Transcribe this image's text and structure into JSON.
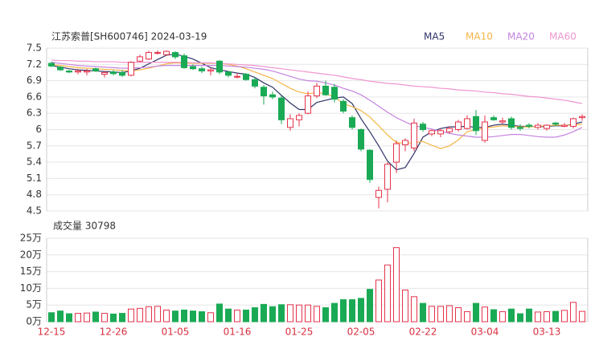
{
  "chart_data": [
    {
      "type": "candlestick",
      "title": "江苏索普[SH600746] 2024-03-19",
      "categories": [
        "12-15",
        null,
        null,
        null,
        null,
        null,
        null,
        "12-26",
        null,
        null,
        null,
        null,
        null,
        null,
        "01-05",
        null,
        null,
        null,
        null,
        null,
        null,
        "01-16",
        null,
        null,
        null,
        null,
        null,
        null,
        "01-25",
        null,
        null,
        null,
        null,
        null,
        null,
        "02-05",
        null,
        null,
        null,
        null,
        null,
        null,
        "02-22",
        null,
        null,
        null,
        null,
        null,
        null,
        "03-04",
        null,
        null,
        null,
        null,
        null,
        null,
        "03-13",
        null,
        null,
        null,
        null
      ],
      "open": [
        7.22,
        7.15,
        7.08,
        7.06,
        7.06,
        7.12,
        7.02,
        7.06,
        7.05,
        7.0,
        7.26,
        7.3,
        7.42,
        7.38,
        7.42,
        7.36,
        7.16,
        7.12,
        7.08,
        7.26,
        7.06,
        6.98,
        7.02,
        6.92,
        6.78,
        6.64,
        6.58,
        6.04,
        6.18,
        6.3,
        6.62,
        6.8,
        6.78,
        6.52,
        6.22,
        6.0,
        5.62,
        4.75,
        4.9,
        5.4,
        5.72,
        5.66,
        6.1,
        5.92,
        5.92,
        5.96,
        6.0,
        6.02,
        6.24,
        5.8,
        6.22,
        6.14,
        6.2,
        6.04,
        6.08,
        6.04,
        6.02,
        6.12,
        6.06,
        6.06,
        6.22
      ],
      "high": [
        7.25,
        7.17,
        7.1,
        7.12,
        7.12,
        7.14,
        7.08,
        7.1,
        7.1,
        7.26,
        7.38,
        7.45,
        7.46,
        7.46,
        7.44,
        7.4,
        7.2,
        7.16,
        7.14,
        7.28,
        7.08,
        7.04,
        7.04,
        6.96,
        6.82,
        6.7,
        6.62,
        6.28,
        6.3,
        6.7,
        6.86,
        6.9,
        6.84,
        6.56,
        6.26,
        6.02,
        5.64,
        4.95,
        5.4,
        5.8,
        5.84,
        6.2,
        6.14,
        6.0,
        6.02,
        6.06,
        6.18,
        6.26,
        6.36,
        6.26,
        6.26,
        6.22,
        6.24,
        6.1,
        6.12,
        6.12,
        6.1,
        6.14,
        6.12,
        6.22,
        6.28
      ],
      "low": [
        7.15,
        7.08,
        7.04,
        7.02,
        7.0,
        7.06,
        6.96,
        7.0,
        6.97,
        6.98,
        7.24,
        7.28,
        7.38,
        7.36,
        7.3,
        7.12,
        7.1,
        7.04,
        7.0,
        7.02,
        6.96,
        6.94,
        6.9,
        6.76,
        6.46,
        6.56,
        6.1,
        5.98,
        6.06,
        6.28,
        6.58,
        6.62,
        6.5,
        6.3,
        6.0,
        5.6,
        5.02,
        4.55,
        4.66,
        5.2,
        5.6,
        5.6,
        5.96,
        5.88,
        5.86,
        5.92,
        5.96,
        6.0,
        5.9,
        5.76,
        6.16,
        6.1,
        6.0,
        5.98,
        6.02,
        6.0,
        5.98,
        6.06,
        6.04,
        6.02,
        6.16
      ],
      "close": [
        7.17,
        7.1,
        7.06,
        7.08,
        7.08,
        7.08,
        7.05,
        7.03,
        7.0,
        7.24,
        7.34,
        7.42,
        7.42,
        7.44,
        7.34,
        7.14,
        7.12,
        7.08,
        7.1,
        7.06,
        7.0,
        6.98,
        6.92,
        6.8,
        6.62,
        6.6,
        6.18,
        6.2,
        6.26,
        6.62,
        6.8,
        6.64,
        6.56,
        6.34,
        6.04,
        5.64,
        5.08,
        4.88,
        5.36,
        5.74,
        5.8,
        6.12,
        6.0,
        5.98,
        5.98,
        6.02,
        6.14,
        6.2,
        5.98,
        6.14,
        6.18,
        6.16,
        6.04,
        6.02,
        6.06,
        6.08,
        6.08,
        6.1,
        6.08,
        6.2,
        6.24
      ],
      "up_color": "#e5334b",
      "down_color": "#1aaa55",
      "ylim": [
        4.5,
        7.5
      ],
      "yticks": [
        4.5,
        4.8,
        5.1,
        5.4,
        5.7,
        6,
        6.3,
        6.6,
        6.9,
        7.2,
        7.5
      ],
      "grid": true,
      "series": [
        {
          "name": "MA5",
          "color": "#2f3468",
          "values": [
            7.18,
            7.15,
            7.12,
            7.1,
            7.09,
            7.08,
            7.07,
            7.06,
            7.05,
            7.08,
            7.13,
            7.21,
            7.29,
            7.37,
            7.39,
            7.35,
            7.3,
            7.22,
            7.14,
            7.1,
            7.07,
            7.04,
            7.02,
            6.96,
            6.86,
            6.78,
            6.63,
            6.49,
            6.37,
            6.37,
            6.5,
            6.54,
            6.58,
            6.6,
            6.48,
            6.2,
            5.96,
            5.7,
            5.42,
            5.26,
            5.3,
            5.56,
            5.86,
            5.96,
            6.02,
            6.05,
            6.05,
            6.06,
            6.04,
            6.04,
            6.08,
            6.1,
            6.08,
            6.06,
            6.06,
            6.05,
            6.06,
            6.07,
            6.07,
            6.1,
            6.14
          ]
        },
        {
          "name": "MA10",
          "color": "#f5b547",
          "values": [
            7.2,
            7.18,
            7.16,
            7.14,
            7.13,
            7.12,
            7.11,
            7.1,
            7.09,
            7.08,
            7.1,
            7.13,
            7.17,
            7.21,
            7.23,
            7.22,
            7.22,
            7.22,
            7.22,
            7.22,
            7.2,
            7.17,
            7.12,
            7.06,
            7.0,
            6.94,
            6.85,
            6.76,
            6.69,
            6.66,
            6.68,
            6.66,
            6.6,
            6.48,
            6.42,
            6.35,
            6.23,
            6.07,
            5.9,
            5.76,
            5.75,
            5.76,
            5.78,
            5.71,
            5.65,
            5.7,
            5.81,
            5.96,
            6.0,
            6.03,
            6.05,
            6.07,
            6.06,
            6.05,
            6.05,
            6.06,
            6.07,
            6.08,
            6.08,
            6.08,
            6.1
          ]
        },
        {
          "name": "MA20",
          "color": "#c583e0",
          "values": [
            7.24,
            7.22,
            7.2,
            7.18,
            7.17,
            7.16,
            7.15,
            7.14,
            7.13,
            7.13,
            7.14,
            7.15,
            7.17,
            7.18,
            7.18,
            7.18,
            7.18,
            7.18,
            7.18,
            7.18,
            7.17,
            7.16,
            7.15,
            7.13,
            7.11,
            7.08,
            7.03,
            6.98,
            6.93,
            6.9,
            6.89,
            6.86,
            6.82,
            6.76,
            6.71,
            6.64,
            6.54,
            6.43,
            6.32,
            6.22,
            6.14,
            6.07,
            6.04,
            6.01,
            5.97,
            5.93,
            5.9,
            5.88,
            5.86,
            5.86,
            5.87,
            5.89,
            5.91,
            5.91,
            5.89,
            5.87,
            5.86,
            5.86,
            5.9,
            5.96,
            6.04
          ]
        },
        {
          "name": "MA60",
          "color": "#ef96cf",
          "values": [
            7.28,
            7.27,
            7.27,
            7.26,
            7.26,
            7.25,
            7.25,
            7.25,
            7.24,
            7.24,
            7.24,
            7.24,
            7.24,
            7.24,
            7.24,
            7.24,
            7.23,
            7.23,
            7.23,
            7.22,
            7.21,
            7.2,
            7.19,
            7.18,
            7.16,
            7.14,
            7.12,
            7.1,
            7.08,
            7.06,
            7.04,
            7.02,
            7.0,
            6.97,
            6.94,
            6.92,
            6.89,
            6.87,
            6.85,
            6.84,
            6.82,
            6.8,
            6.79,
            6.78,
            6.76,
            6.75,
            6.73,
            6.72,
            6.71,
            6.69,
            6.68,
            6.66,
            6.65,
            6.63,
            6.61,
            6.6,
            6.58,
            6.56,
            6.54,
            6.51,
            6.48
          ]
        }
      ]
    },
    {
      "type": "bar",
      "title": "成交量 30798",
      "values": [
        2.7,
        3.2,
        2.4,
        2.5,
        2.6,
        2.9,
        2.5,
        2.3,
        2.5,
        3.8,
        4.0,
        4.5,
        4.6,
        3.5,
        3.2,
        3.5,
        3.2,
        3.0,
        2.7,
        5.3,
        3.8,
        3.5,
        3.5,
        4.2,
        5.2,
        4.5,
        5.1,
        5.1,
        5.0,
        5.0,
        4.6,
        4.2,
        5.5,
        6.6,
        6.6,
        7.0,
        9.7,
        12.5,
        17.0,
        22.2,
        9.5,
        7.5,
        5.5,
        4.6,
        4.6,
        4.8,
        4.2,
        3.0,
        5.5,
        4.4,
        3.6,
        3.0,
        3.8,
        2.4,
        3.8,
        2.9,
        3.0,
        3.1,
        3.4,
        5.8,
        3.1
      ],
      "ylim": [
        0,
        25
      ],
      "yticks": [
        {
          "value": 0,
          "label": "0万"
        },
        {
          "value": 5,
          "label": "5万"
        },
        {
          "value": 10,
          "label": "10万"
        },
        {
          "value": 15,
          "label": "15万"
        },
        {
          "value": 20,
          "label": "20万"
        },
        {
          "value": 25,
          "label": "25万"
        }
      ],
      "grid": true
    }
  ]
}
